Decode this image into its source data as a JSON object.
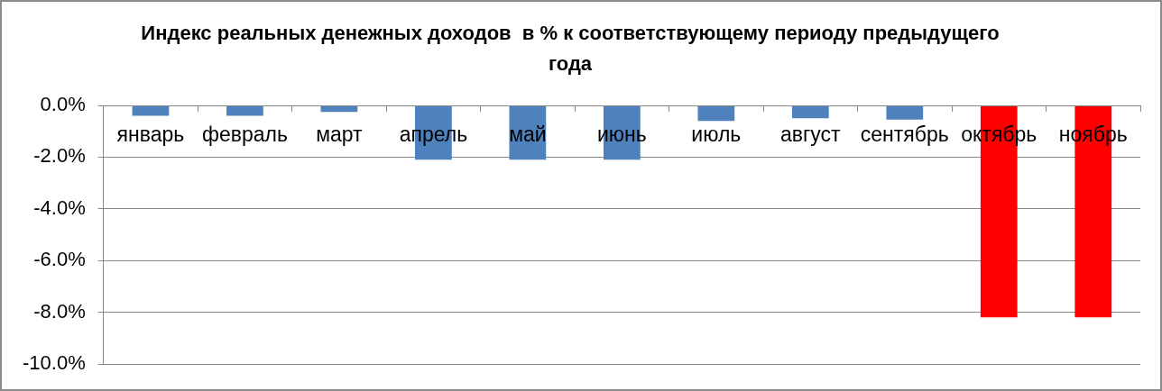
{
  "chart_data": {
    "type": "bar",
    "title": "Индекс реальных денежных доходов  в % к соответствующему периоду предыдущего года",
    "categories": [
      "январь",
      "февраль",
      "март",
      "апрель",
      "май",
      "июнь",
      "июль",
      "август",
      "сентябрь",
      "октябрь",
      "ноябрь"
    ],
    "values": [
      -0.4,
      -0.4,
      -0.25,
      -2.1,
      -2.1,
      -2.1,
      -0.6,
      -0.5,
      -0.55,
      -8.2,
      -8.2
    ],
    "colors": [
      "#4f81bd",
      "#4f81bd",
      "#4f81bd",
      "#4f81bd",
      "#4f81bd",
      "#4f81bd",
      "#4f81bd",
      "#4f81bd",
      "#4f81bd",
      "#ff0000",
      "#ff0000"
    ],
    "ylim": [
      -10,
      0
    ],
    "yticks": [
      {
        "value": 0,
        "label": "0.0%"
      },
      {
        "value": -2,
        "label": "-2.0%"
      },
      {
        "value": -4,
        "label": "-4.0%"
      },
      {
        "value": -6,
        "label": "-6.0%"
      },
      {
        "value": -8,
        "label": "-8.0%"
      },
      {
        "value": -10,
        "label": "-10.0%"
      }
    ],
    "grid": "y"
  }
}
